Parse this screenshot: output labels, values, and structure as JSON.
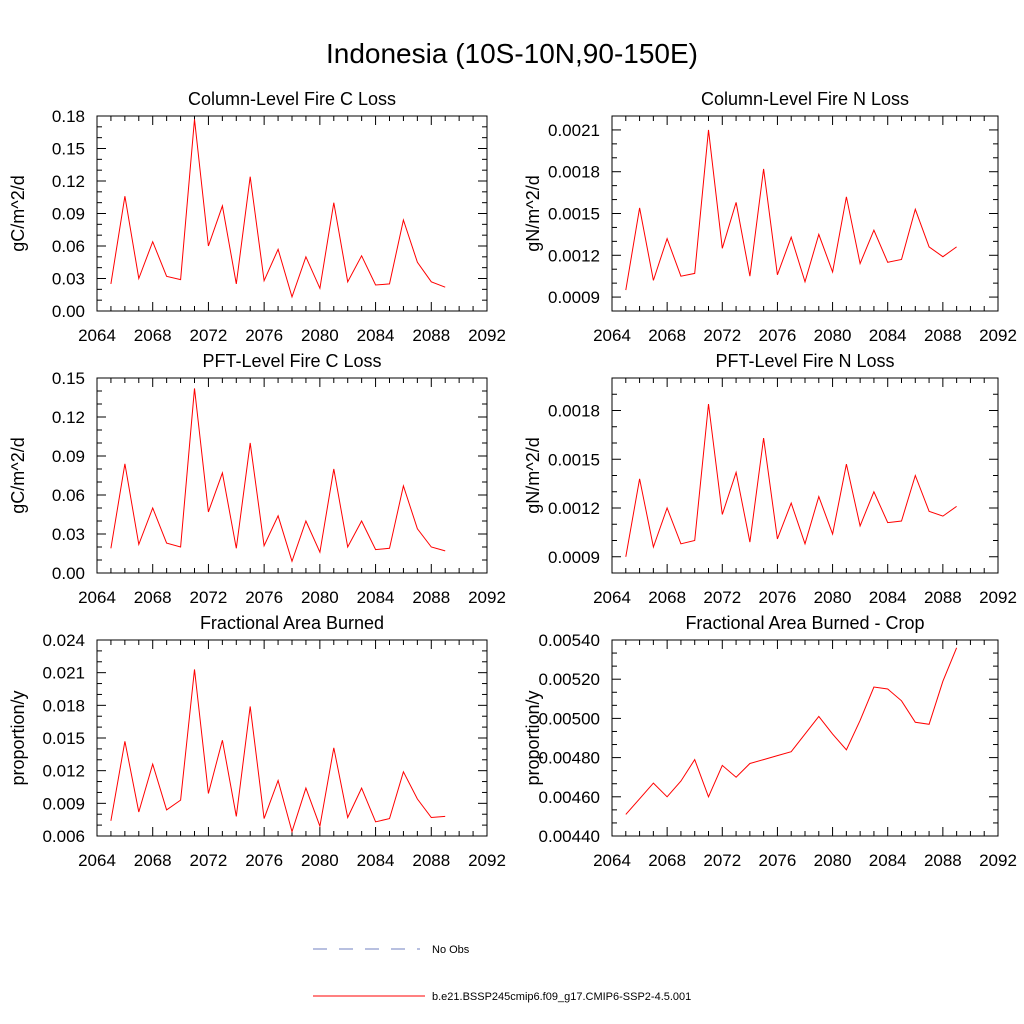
{
  "title": "Indonesia (10S-10N,90-150E)",
  "legend": {
    "placement": "bottom-center",
    "entries": [
      {
        "label": "No Obs",
        "color": "#7080c0",
        "style": "dashed"
      },
      {
        "label": "b.e21.BSSP245cmip6.f09_g17.CMIP6-SSP2-4.5.001",
        "color": "#ff0000",
        "style": "solid"
      }
    ]
  },
  "chart_data": [
    {
      "type": "line",
      "title": "Column-Level Fire C Loss",
      "ylabel": "gC/m^2/d",
      "xlim": [
        2064,
        2092
      ],
      "ylim": [
        0,
        0.18
      ],
      "xticks": [
        "2064",
        "2068",
        "2072",
        "2076",
        "2080",
        "2084",
        "2088",
        "2092"
      ],
      "yticks": [
        "0.00",
        "0.03",
        "0.06",
        "0.09",
        "0.12",
        "0.15",
        "0.18"
      ],
      "x": [
        2065,
        2066,
        2067,
        2068,
        2069,
        2070,
        2071,
        2072,
        2073,
        2074,
        2075,
        2076,
        2077,
        2078,
        2079,
        2080,
        2081,
        2082,
        2083,
        2084,
        2085,
        2086,
        2087,
        2088,
        2089
      ],
      "series": [
        {
          "color": "#ff0000",
          "values": [
            0.025,
            0.106,
            0.03,
            0.064,
            0.032,
            0.029,
            0.177,
            0.06,
            0.097,
            0.025,
            0.124,
            0.028,
            0.057,
            0.013,
            0.05,
            0.021,
            0.1,
            0.027,
            0.051,
            0.024,
            0.025,
            0.084,
            0.045,
            0.027,
            0.022
          ]
        }
      ]
    },
    {
      "type": "line",
      "title": "Column-Level Fire N Loss",
      "ylabel": "gN/m^2/d",
      "xlim": [
        2064,
        2092
      ],
      "ylim": [
        0.0008,
        0.0022
      ],
      "xticks": [
        "2064",
        "2068",
        "2072",
        "2076",
        "2080",
        "2084",
        "2088",
        "2092"
      ],
      "yticks": [
        "0.0009",
        "0.0012",
        "0.0015",
        "0.0018",
        "0.0021"
      ],
      "x": [
        2065,
        2066,
        2067,
        2068,
        2069,
        2070,
        2071,
        2072,
        2073,
        2074,
        2075,
        2076,
        2077,
        2078,
        2079,
        2080,
        2081,
        2082,
        2083,
        2084,
        2085,
        2086,
        2087,
        2088,
        2089
      ],
      "series": [
        {
          "color": "#ff0000",
          "values": [
            0.00095,
            0.00154,
            0.00102,
            0.00132,
            0.00105,
            0.00107,
            0.0021,
            0.00125,
            0.00158,
            0.00105,
            0.00182,
            0.00106,
            0.00133,
            0.00101,
            0.00135,
            0.00108,
            0.00162,
            0.00114,
            0.00138,
            0.00115,
            0.00117,
            0.00153,
            0.00126,
            0.00119,
            0.00126
          ]
        }
      ]
    },
    {
      "type": "line",
      "title": "PFT-Level Fire C Loss",
      "ylabel": "gC/m^2/d",
      "xlim": [
        2064,
        2092
      ],
      "ylim": [
        0,
        0.15
      ],
      "xticks": [
        "2064",
        "2068",
        "2072",
        "2076",
        "2080",
        "2084",
        "2088",
        "2092"
      ],
      "yticks": [
        "0.00",
        "0.03",
        "0.06",
        "0.09",
        "0.12",
        "0.15"
      ],
      "x": [
        2065,
        2066,
        2067,
        2068,
        2069,
        2070,
        2071,
        2072,
        2073,
        2074,
        2075,
        2076,
        2077,
        2078,
        2079,
        2080,
        2081,
        2082,
        2083,
        2084,
        2085,
        2086,
        2087,
        2088,
        2089
      ],
      "series": [
        {
          "color": "#ff0000",
          "values": [
            0.019,
            0.084,
            0.022,
            0.05,
            0.023,
            0.02,
            0.142,
            0.047,
            0.077,
            0.019,
            0.1,
            0.021,
            0.044,
            0.009,
            0.04,
            0.016,
            0.08,
            0.02,
            0.04,
            0.018,
            0.019,
            0.067,
            0.034,
            0.02,
            0.017
          ]
        }
      ]
    },
    {
      "type": "line",
      "title": "PFT-Level Fire N Loss",
      "ylabel": "gN/m^2/d",
      "xlim": [
        2064,
        2092
      ],
      "ylim": [
        0.0008,
        0.002
      ],
      "xticks": [
        "2064",
        "2068",
        "2072",
        "2076",
        "2080",
        "2084",
        "2088",
        "2092"
      ],
      "yticks": [
        "0.0009",
        "0.0012",
        "0.0015",
        "0.0018"
      ],
      "x": [
        2065,
        2066,
        2067,
        2068,
        2069,
        2070,
        2071,
        2072,
        2073,
        2074,
        2075,
        2076,
        2077,
        2078,
        2079,
        2080,
        2081,
        2082,
        2083,
        2084,
        2085,
        2086,
        2087,
        2088,
        2089
      ],
      "series": [
        {
          "color": "#ff0000",
          "values": [
            0.0009,
            0.00138,
            0.00096,
            0.0012,
            0.00098,
            0.001,
            0.00184,
            0.00116,
            0.00142,
            0.00099,
            0.00163,
            0.00101,
            0.00123,
            0.00098,
            0.00127,
            0.00104,
            0.00147,
            0.00109,
            0.0013,
            0.00111,
            0.00112,
            0.0014,
            0.00118,
            0.00115,
            0.00121
          ]
        }
      ]
    },
    {
      "type": "line",
      "title": "Fractional Area Burned",
      "ylabel": "proportion/y",
      "xlim": [
        2064,
        2092
      ],
      "ylim": [
        0.006,
        0.024
      ],
      "xticks": [
        "2064",
        "2068",
        "2072",
        "2076",
        "2080",
        "2084",
        "2088",
        "2092"
      ],
      "yticks": [
        "0.006",
        "0.009",
        "0.012",
        "0.015",
        "0.018",
        "0.021",
        "0.024"
      ],
      "x": [
        2065,
        2066,
        2067,
        2068,
        2069,
        2070,
        2071,
        2072,
        2073,
        2074,
        2075,
        2076,
        2077,
        2078,
        2079,
        2080,
        2081,
        2082,
        2083,
        2084,
        2085,
        2086,
        2087,
        2088,
        2089
      ],
      "series": [
        {
          "color": "#ff0000",
          "values": [
            0.0074,
            0.0147,
            0.0082,
            0.0126,
            0.0084,
            0.0093,
            0.0213,
            0.0099,
            0.0148,
            0.0078,
            0.0179,
            0.0076,
            0.0111,
            0.0064,
            0.0104,
            0.0069,
            0.0141,
            0.0077,
            0.0104,
            0.0073,
            0.0076,
            0.0119,
            0.0094,
            0.0077,
            0.0078
          ]
        }
      ]
    },
    {
      "type": "line",
      "title": "Fractional Area Burned - Crop",
      "ylabel": "proportion/y",
      "xlim": [
        2064,
        2092
      ],
      "ylim": [
        0.0044,
        0.0054
      ],
      "xticks": [
        "2064",
        "2068",
        "2072",
        "2076",
        "2080",
        "2084",
        "2088",
        "2092"
      ],
      "yticks": [
        "0.00440",
        "0.00460",
        "0.00480",
        "0.00500",
        "0.00520",
        "0.00540"
      ],
      "x": [
        2065,
        2066,
        2067,
        2068,
        2069,
        2070,
        2071,
        2072,
        2073,
        2074,
        2075,
        2076,
        2077,
        2078,
        2079,
        2080,
        2081,
        2082,
        2083,
        2084,
        2085,
        2086,
        2087,
        2088,
        2089
      ],
      "series": [
        {
          "color": "#ff0000",
          "values": [
            0.00451,
            0.00459,
            0.00467,
            0.0046,
            0.00468,
            0.00479,
            0.0046,
            0.00476,
            0.0047,
            0.00477,
            0.00479,
            0.00481,
            0.00483,
            0.00492,
            0.00501,
            0.00492,
            0.00484,
            0.00499,
            0.00516,
            0.00515,
            0.00509,
            0.00498,
            0.00497,
            0.00519,
            0.00536
          ]
        }
      ]
    }
  ]
}
